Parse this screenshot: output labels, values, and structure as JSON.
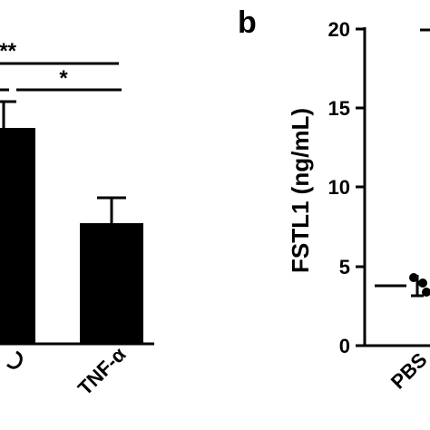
{
  "panel_a": {
    "categories": [
      "",
      "TNF-α"
    ],
    "significance": [
      {
        "label": "***"
      },
      {
        "label": "*"
      }
    ]
  },
  "panel_b": {
    "letter": "b",
    "ylabel": "FSTL1 (ng/mL)",
    "yticks": [
      "20",
      "15",
      "10",
      "5",
      "0"
    ],
    "categories": [
      "PBS"
    ]
  },
  "chart_data": [
    {
      "type": "bar",
      "title": "",
      "categories": [
        "",
        "TNF-α"
      ],
      "values": [
        13.5,
        7.6
      ],
      "errors": [
        2.0,
        1.9
      ],
      "significance": [
        "***",
        "*"
      ]
    },
    {
      "type": "scatter",
      "title": "",
      "ylabel": "FSTL1 (ng/mL)",
      "ylim": [
        0,
        20
      ],
      "yticks": [
        0,
        5,
        10,
        15,
        20
      ],
      "categories": [
        "PBS"
      ],
      "points": [
        4.3,
        4.0,
        3.4
      ],
      "mean": 3.9
    }
  ]
}
